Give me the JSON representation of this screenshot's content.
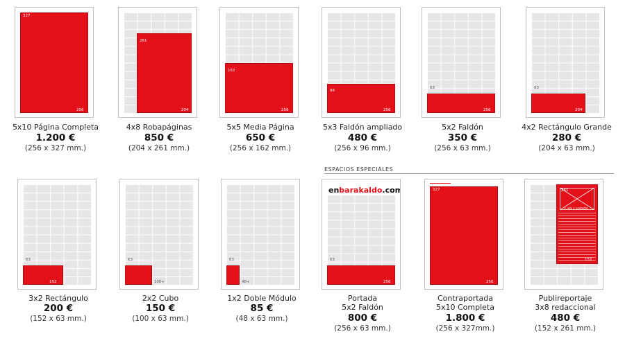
{
  "section": {
    "title": "ESPACIOS ESPECIALES"
  },
  "cards": [
    {
      "name": "5x10 Página Completa",
      "price": "1.200 €",
      "size": "(256 x 327 mm.)",
      "w": "256",
      "h": "327",
      "extra": ""
    },
    {
      "name": "4x8 Robapáginas",
      "price": "850 €",
      "size": "(204 x 261 mm.)",
      "w": "204",
      "h": "261",
      "extra": ""
    },
    {
      "name": "5x5 Media Página",
      "price": "650 €",
      "size": "(256 x 162 mm.)",
      "w": "256",
      "h": "162",
      "extra": ""
    },
    {
      "name": "5x3 Faldón ampliado",
      "price": "480 €",
      "size": "(256 x 96 mm.)",
      "w": "256",
      "h": "96",
      "extra": ""
    },
    {
      "name": "5x2 Faldón",
      "price": "350 €",
      "size": "(256 x 63 mm.)",
      "w": "256",
      "h": "63",
      "extra": ""
    },
    {
      "name": "4x2 Rectángulo Grande",
      "price": "280 €",
      "size": "(204 x 63 mm.)",
      "w": "204",
      "h": "63",
      "extra": ""
    },
    {
      "name": "3x2 Rectángulo",
      "price": "200 €",
      "size": "(152 x 63 mm.)",
      "w": "152",
      "h": "63",
      "extra": ""
    },
    {
      "name": "2x2 Cubo",
      "price": "150 €",
      "size": "(100 x 63 mm.)",
      "w": "",
      "h": "63",
      "extra": "100+"
    },
    {
      "name": "1x2 Doble Módulo",
      "price": "85 €",
      "size": "(48 x 63 mm.)",
      "w": "",
      "h": "63",
      "extra": "48+"
    },
    {
      "name": "Portada",
      "name2": "5x2 Faldón",
      "price": "800 €",
      "size": "(256 x 63 mm.)",
      "w": "256",
      "h": "63",
      "extra": "",
      "logo_a": "en",
      "logo_b": "barakaldo",
      "logo_c": ".com"
    },
    {
      "name": "Contraportada",
      "name2": "5x10 Completa",
      "price": "1.800 €",
      "size": "(256 x 327mm.)",
      "w": "256",
      "h": "327",
      "extra": ""
    },
    {
      "name": "Publireportaje",
      "name2": "3x8 redaccional",
      "price": "480 €",
      "size": "(152 x 261 mm.)",
      "w": "152",
      "h": "261",
      "extra": "+ info y contacto"
    }
  ]
}
